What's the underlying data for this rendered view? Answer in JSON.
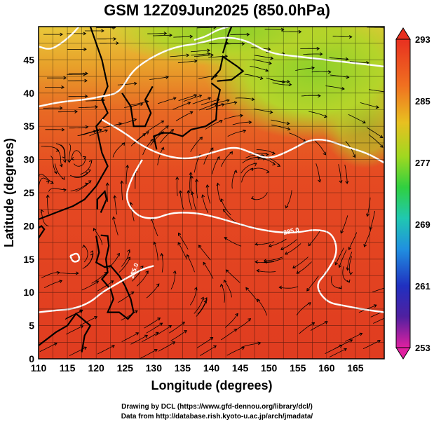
{
  "title": "GSM 12Z09Jun2025 (850.0hPa)",
  "map": {
    "lon_range": [
      110,
      170
    ],
    "lat_range": [
      0,
      50
    ],
    "xlabel": "Longitude (degrees)",
    "ylabel": "Latitude  (degrees)",
    "x_ticks": [
      "110",
      "115",
      "120",
      "125",
      "130",
      "135",
      "140",
      "145",
      "150",
      "155",
      "160",
      "165"
    ],
    "y_ticks": [
      "0",
      "5",
      "10",
      "15",
      "20",
      "25",
      "30",
      "35",
      "40",
      "45"
    ],
    "grid": true,
    "contour_labels": [
      "285.0",
      "285.0"
    ]
  },
  "colorbar": {
    "ticks": [
      "293",
      "285",
      "277",
      "269",
      "261",
      "253"
    ],
    "range": [
      253,
      293
    ],
    "colors": [
      "#e0208f",
      "#2020b0",
      "#2090e0",
      "#20c8c0",
      "#30d030",
      "#e0e020",
      "#f09020",
      "#e83020"
    ]
  },
  "credits": {
    "line1": "Drawing by DCL (https://www.gfd-dennou.org/library/dcl/)",
    "line2": "Data from http://database.rish.kyoto-u.ac.jp/arch/jmadata/"
  }
}
